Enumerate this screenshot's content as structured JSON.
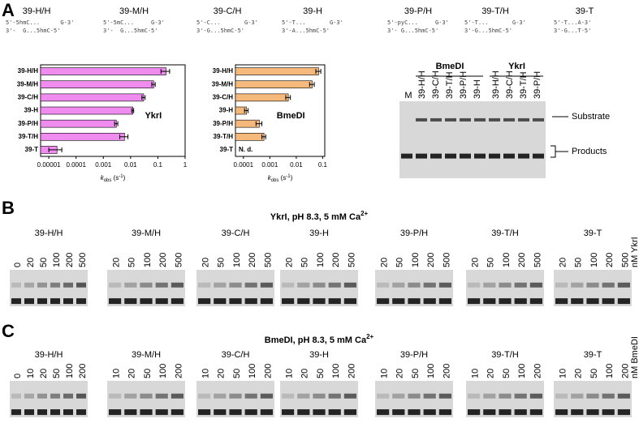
{
  "panel_a": {
    "label": "A",
    "constructs": [
      {
        "name": "39-H/H",
        "top": "5'-5hmC...      G-3'",
        "bottom": "3'-  G...5hmC-5'"
      },
      {
        "name": "39-M/H",
        "top": "5'-5mC...     G-3'",
        "bottom": "3'-  G...5hmC-5'"
      },
      {
        "name": "39-C/H",
        "top": "5'-C...       G-3'",
        "bottom": "3'-G...5hmC-5'"
      },
      {
        "name": "39-H",
        "top": "5'-T...       G-3'",
        "bottom": "3'-A...5hmC-5'"
      },
      {
        "name": "39-P/H",
        "top": "5'-pyC...     G-3'",
        "bottom": "3'- G...5hmC-5'"
      },
      {
        "name": "39-T/H",
        "top": "5'-T...       G-3'",
        "bottom": "3'-G...5hmC-5'"
      },
      {
        "name": "39-T",
        "top": "5'-T...A-3'",
        "bottom": "3'-G...T-5'"
      }
    ],
    "gel": {
      "marker": "M",
      "substrate": "Substrate",
      "products": "Products",
      "groups": [
        {
          "name": "BmeDI",
          "lanes": [
            "39-H/H",
            "39-C/H",
            "39-T/H",
            "39-P/H",
            "39-H"
          ]
        },
        {
          "name": "YkrI",
          "lanes": [
            "39-H/H",
            "39-C/H",
            "39-T/H",
            "39-P/H"
          ]
        }
      ]
    }
  },
  "chart_data": [
    {
      "type": "bar",
      "orientation": "horizontal",
      "label": "YkrI",
      "color": "#f08cf0",
      "categories": [
        "39-H/H",
        "39-M/H",
        "39-C/H",
        "39-H",
        "39-P/H",
        "39-T/H",
        "39-T"
      ],
      "values": [
        0.2,
        0.07,
        0.03,
        0.012,
        0.003,
        0.006,
        2e-05
      ],
      "errors": [
        0.07,
        0.01,
        0.004,
        0.001,
        0.0004,
        0.002,
        1e-05
      ],
      "xlim": [
        5e-06,
        1
      ],
      "xticks": [
        1e-05,
        0.0001,
        0.001,
        0.01,
        0.1,
        1
      ],
      "log_x": true,
      "x_label": {
        "symbol": "k",
        "subscript": "obs",
        "unit": " (s",
        "exponent": "-1",
        "close": ")"
      }
    },
    {
      "type": "bar",
      "orientation": "horizontal",
      "label": "BmeDI",
      "color": "#f6b97c",
      "categories": [
        "39-H/H",
        "39-M/H",
        "39-C/H",
        "39-H",
        "39-P/H",
        "39-T/H",
        "39-T"
      ],
      "values": [
        0.07,
        0.04,
        0.005,
        0.00013,
        0.0004,
        0.0006,
        null
      ],
      "errors": [
        0.015,
        0.008,
        0.001,
        2e-05,
        0.0001,
        0.0001,
        null
      ],
      "missing_label": "N. d.",
      "xlim": [
        5e-05,
        0.12
      ],
      "xticks": [
        0.0001,
        0.001,
        0.01,
        0.1
      ],
      "log_x": true,
      "x_label": {
        "symbol": "k",
        "subscript": "obs",
        "unit": " (s",
        "exponent": "-1",
        "close": ")"
      }
    }
  ],
  "panel_b": {
    "label": "B",
    "title": "YkrI, pH 8.3, 5 mM Ca",
    "title_sup": "2+",
    "unit": "nM YkrI",
    "gels": [
      {
        "name": "39-H/H",
        "concentrations": [
          "0",
          "20",
          "50",
          "100",
          "200",
          "500"
        ]
      },
      {
        "name": "39-M/H",
        "concentrations": [
          "20",
          "50",
          "100",
          "200",
          "500"
        ]
      },
      {
        "name": "39-C/H",
        "concentrations": [
          "20",
          "50",
          "100",
          "200",
          "500"
        ]
      },
      {
        "name": "39-H",
        "concentrations": [
          "20",
          "50",
          "100",
          "200",
          "500"
        ]
      },
      {
        "name": "39-P/H",
        "concentrations": [
          "20",
          "50",
          "100",
          "200",
          "500"
        ]
      },
      {
        "name": "39-T/H",
        "concentrations": [
          "20",
          "50",
          "100",
          "200",
          "500"
        ]
      },
      {
        "name": "39-T",
        "concentrations": [
          "20",
          "50",
          "100",
          "200",
          "500"
        ]
      }
    ]
  },
  "panel_c": {
    "label": "C",
    "title": "BmeDI, pH 8.3, 5 mM Ca",
    "title_sup": "2+",
    "unit": "nM BmeDI",
    "gels": [
      {
        "name": "39-H/H",
        "concentrations": [
          "0",
          "10",
          "20",
          "50",
          "100",
          "200"
        ]
      },
      {
        "name": "39-M/H",
        "concentrations": [
          "10",
          "20",
          "50",
          "100",
          "200"
        ]
      },
      {
        "name": "39-C/H",
        "concentrations": [
          "10",
          "20",
          "50",
          "100",
          "200"
        ]
      },
      {
        "name": "39-H",
        "concentrations": [
          "10",
          "20",
          "50",
          "100",
          "200"
        ]
      },
      {
        "name": "39-P/H",
        "concentrations": [
          "10",
          "20",
          "50",
          "100",
          "200"
        ]
      },
      {
        "name": "39-T/H",
        "concentrations": [
          "10",
          "20",
          "50",
          "100",
          "200"
        ]
      },
      {
        "name": "39-T",
        "concentrations": [
          "10",
          "20",
          "50",
          "100",
          "200"
        ]
      }
    ]
  }
}
